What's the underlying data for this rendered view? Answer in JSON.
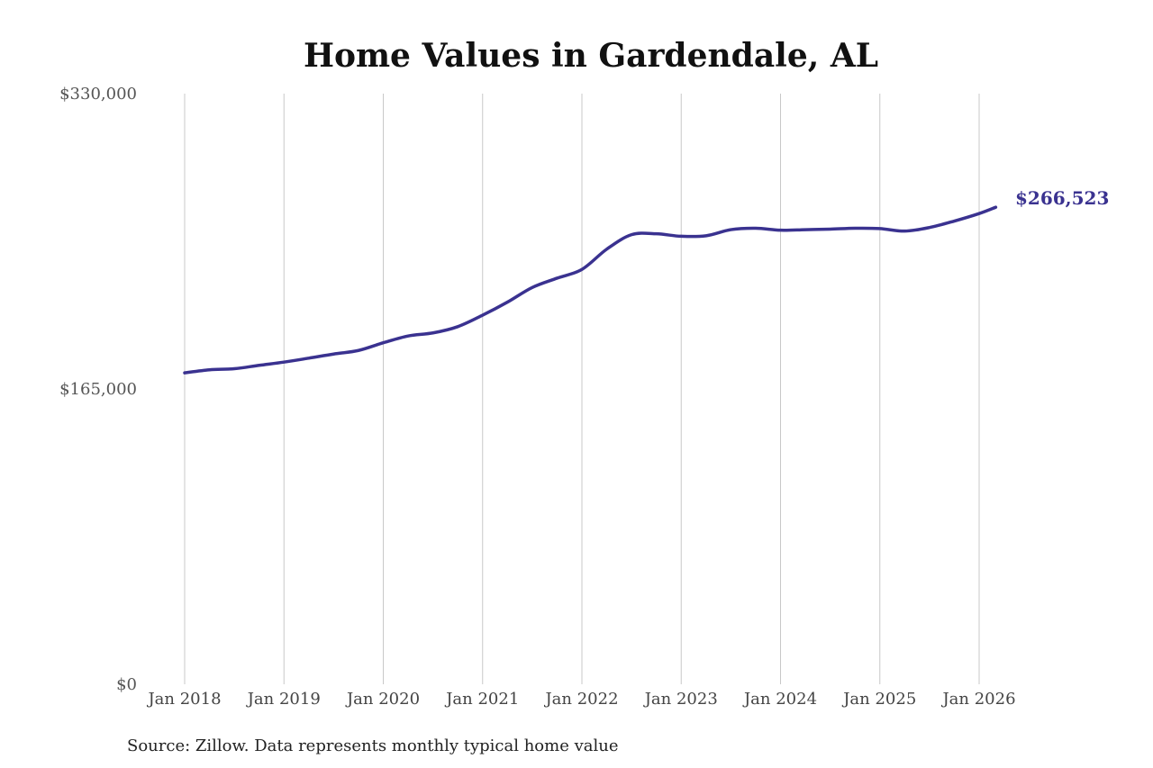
{
  "colors": {
    "line": "#3a3290",
    "grid": "#c8c8c8",
    "background": "#ffffff"
  },
  "source_note": "Source: Zillow. Data represents monthly typical home value",
  "chart_data": {
    "type": "line",
    "title": "Home Values in Gardendale, AL",
    "xlabel": "",
    "ylabel": "",
    "ylim": [
      0,
      330000
    ],
    "xlim": [
      "2018-01",
      "2026-03"
    ],
    "grid": {
      "vertical": true,
      "horizontal": false
    },
    "y_ticks": [
      {
        "value": 0,
        "label": "$0"
      },
      {
        "value": 165000,
        "label": "$165,000"
      },
      {
        "value": 330000,
        "label": "$330,000"
      }
    ],
    "x_ticks": [
      {
        "value": "2018-01",
        "label": "Jan 2018"
      },
      {
        "value": "2019-01",
        "label": "Jan 2019"
      },
      {
        "value": "2020-01",
        "label": "Jan 2020"
      },
      {
        "value": "2021-01",
        "label": "Jan 2021"
      },
      {
        "value": "2022-01",
        "label": "Jan 2022"
      },
      {
        "value": "2023-01",
        "label": "Jan 2023"
      },
      {
        "value": "2024-01",
        "label": "Jan 2024"
      },
      {
        "value": "2025-01",
        "label": "Jan 2025"
      },
      {
        "value": "2026-01",
        "label": "Jan 2026"
      }
    ],
    "end_label": "$266,523",
    "series": [
      {
        "color": "#3a3290",
        "x": [
          "2018-01",
          "2018-04",
          "2018-07",
          "2018-10",
          "2019-01",
          "2019-04",
          "2019-07",
          "2019-10",
          "2020-01",
          "2020-04",
          "2020-07",
          "2020-10",
          "2021-01",
          "2021-04",
          "2021-07",
          "2021-10",
          "2022-01",
          "2022-04",
          "2022-07",
          "2022-10",
          "2023-01",
          "2023-04",
          "2023-07",
          "2023-10",
          "2024-01",
          "2024-04",
          "2024-07",
          "2024-10",
          "2025-01",
          "2025-04",
          "2025-07",
          "2025-10",
          "2026-01",
          "2026-03"
        ],
        "values": [
          174000,
          175700,
          176300,
          178200,
          180000,
          182200,
          184500,
          186500,
          190800,
          194600,
          196300,
          199800,
          206200,
          213500,
          221700,
          226900,
          231800,
          243100,
          251200,
          251700,
          250300,
          250600,
          254000,
          254800,
          253700,
          254000,
          254300,
          254800,
          254600,
          253200,
          255200,
          258800,
          263000,
          266523
        ]
      }
    ]
  }
}
